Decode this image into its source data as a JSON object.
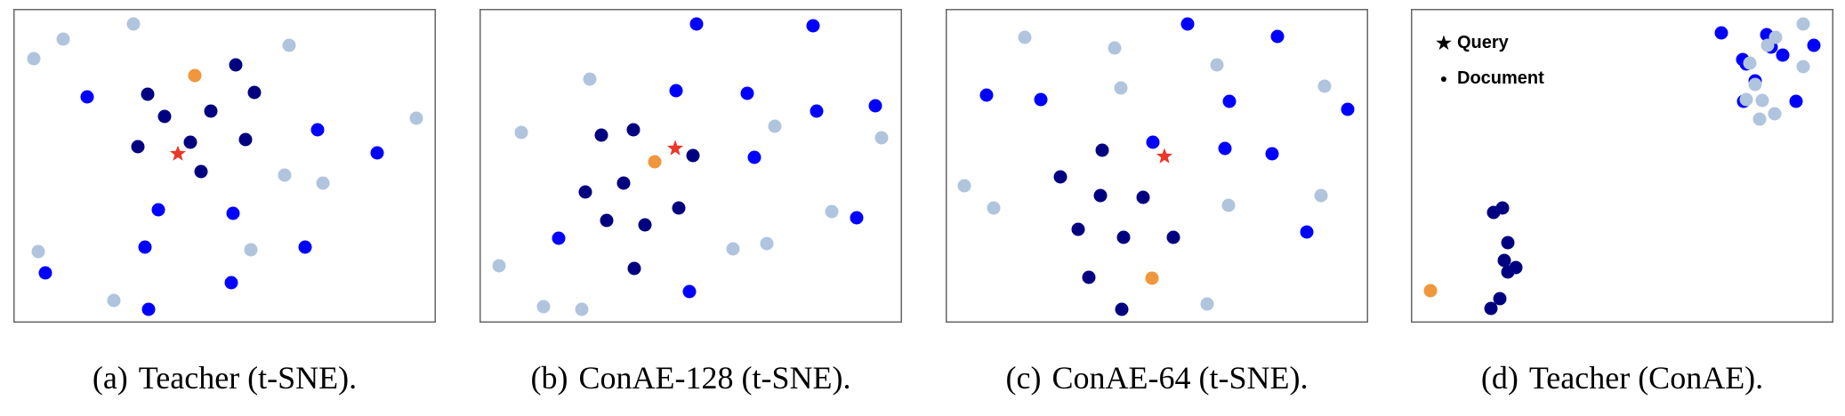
{
  "figure": {
    "colors": {
      "relevant_navy": "#000080",
      "blue": "#0000FF",
      "light": "#B0C4DE",
      "orange": "#F0963C",
      "query_star": "#E8382A",
      "frame": "#666666"
    },
    "legend": {
      "query_symbol": "★",
      "query_label": "Query",
      "document_symbol": "●",
      "document_label": "Document"
    }
  },
  "captions": [
    {
      "tag": "(a)",
      "text": "Teacher (t-SNE)."
    },
    {
      "tag": "(b)",
      "text": "ConAE-128 (t-SNE)."
    },
    {
      "tag": "(c)",
      "text": "ConAE-64 (t-SNE)."
    },
    {
      "tag": "(d)",
      "text": "Teacher (ConAE)."
    }
  ],
  "chart_data": [
    {
      "type": "scatter",
      "title": "(a) Teacher (t-SNE).",
      "xlabel": "",
      "ylabel": "",
      "grid": false,
      "axes_ticks": false,
      "coordinate_note": "pixel coords within 475x353 frame, origin top-left",
      "query": [
        185,
        163
      ],
      "series": [
        {
          "name": "navy",
          "color": "#000080",
          "points": [
            [
              250,
              63
            ],
            [
              151,
              96
            ],
            [
              271,
              94
            ],
            [
              170,
              121
            ],
            [
              222,
              115
            ],
            [
              140,
              155
            ],
            [
              199,
              150
            ],
            [
              261,
              147
            ],
            [
              211,
              183
            ]
          ]
        },
        {
          "name": "blue",
          "color": "#0000FF",
          "points": [
            [
              83,
              99
            ],
            [
              342,
              136
            ],
            [
              409,
              162
            ],
            [
              163,
              226
            ],
            [
              247,
              230
            ],
            [
              148,
              268
            ],
            [
              328,
              268
            ],
            [
              36,
              297
            ],
            [
              245,
              308
            ],
            [
              152,
              338
            ]
          ]
        },
        {
          "name": "light",
          "color": "#B0C4DE",
          "points": [
            [
              135,
              17
            ],
            [
              56,
              34
            ],
            [
              23,
              56
            ],
            [
              310,
              41
            ],
            [
              453,
              123
            ],
            [
              305,
              187
            ],
            [
              348,
              196
            ],
            [
              28,
              273
            ],
            [
              267,
              271
            ],
            [
              113,
              328
            ]
          ]
        },
        {
          "name": "orange",
          "color": "#F0963C",
          "points": [
            [
              204,
              75
            ]
          ]
        }
      ]
    },
    {
      "type": "scatter",
      "title": "(b) ConAE-128 (t-SNE).",
      "xlabel": "",
      "ylabel": "",
      "grid": false,
      "axes_ticks": false,
      "query": [
        220,
        157
      ],
      "series": [
        {
          "name": "navy",
          "color": "#000080",
          "points": [
            [
              137,
              142
            ],
            [
              173,
              136
            ],
            [
              240,
              165
            ],
            [
              162,
              196
            ],
            [
              119,
              206
            ],
            [
              224,
              224
            ],
            [
              143,
              238
            ],
            [
              186,
              243
            ],
            [
              174,
              292
            ]
          ]
        },
        {
          "name": "blue",
          "color": "#0000FF",
          "points": [
            [
              244,
              17
            ],
            [
              375,
              19
            ],
            [
              221,
              92
            ],
            [
              301,
              95
            ],
            [
              379,
              115
            ],
            [
              445,
              109
            ],
            [
              309,
              167
            ],
            [
              424,
              235
            ],
            [
              89,
              258
            ],
            [
              236,
              318
            ]
          ]
        },
        {
          "name": "light",
          "color": "#B0C4DE",
          "points": [
            [
              124,
              79
            ],
            [
              47,
              139
            ],
            [
              332,
              132
            ],
            [
              452,
              145
            ],
            [
              396,
              228
            ],
            [
              323,
              264
            ],
            [
              285,
              270
            ],
            [
              22,
              289
            ],
            [
              72,
              335
            ],
            [
              115,
              338
            ]
          ]
        },
        {
          "name": "orange",
          "color": "#F0963C",
          "points": [
            [
              197,
              172
            ]
          ]
        }
      ]
    },
    {
      "type": "scatter",
      "title": "(c) ConAE-64 (t-SNE).",
      "xlabel": "",
      "ylabel": "",
      "grid": false,
      "axes_ticks": false,
      "query": [
        246,
        166
      ],
      "series": [
        {
          "name": "navy",
          "color": "#000080",
          "points": [
            [
              176,
              159
            ],
            [
              129,
              189
            ],
            [
              174,
              210
            ],
            [
              222,
              212
            ],
            [
              149,
              248
            ],
            [
              200,
              257
            ],
            [
              256,
              257
            ],
            [
              161,
              302
            ],
            [
              198,
              338
            ]
          ]
        },
        {
          "name": "blue",
          "color": "#0000FF",
          "points": [
            [
              272,
              17
            ],
            [
              373,
              31
            ],
            [
              46,
              97
            ],
            [
              107,
              102
            ],
            [
              319,
              104
            ],
            [
              452,
              113
            ],
            [
              233,
              150
            ],
            [
              314,
              157
            ],
            [
              367,
              163
            ],
            [
              406,
              251
            ]
          ]
        },
        {
          "name": "light",
          "color": "#B0C4DE",
          "points": [
            [
              89,
              32
            ],
            [
              190,
              44
            ],
            [
              305,
              63
            ],
            [
              197,
              89
            ],
            [
              426,
              87
            ],
            [
              21,
              199
            ],
            [
              54,
              224
            ],
            [
              318,
              221
            ],
            [
              422,
              210
            ],
            [
              294,
              332
            ]
          ]
        },
        {
          "name": "orange",
          "color": "#F0963C",
          "points": [
            [
              232,
              303
            ]
          ]
        }
      ]
    },
    {
      "type": "scatter",
      "title": "(d) Teacher (ConAE).",
      "xlabel": "",
      "ylabel": "",
      "grid": false,
      "axes_ticks": false,
      "legend": {
        "position": "upper left",
        "entries": [
          "★ Query",
          "● Document"
        ]
      },
      "query": null,
      "series": [
        {
          "name": "navy",
          "color": "#000080",
          "points": [
            [
              93,
              229
            ],
            [
              103,
              224
            ],
            [
              109,
              263
            ],
            [
              105,
              283
            ],
            [
              118,
              291
            ],
            [
              109,
              296
            ],
            [
              100,
              326
            ],
            [
              90,
              337
            ]
          ]
        },
        {
          "name": "blue",
          "color": "#0000FF",
          "points": [
            [
              349,
              27
            ],
            [
              400,
              29
            ],
            [
              405,
              43
            ],
            [
              418,
              52
            ],
            [
              453,
              41
            ],
            [
              373,
              57
            ],
            [
              377,
              62
            ],
            [
              387,
              81
            ],
            [
              374,
              104
            ],
            [
              433,
              104
            ]
          ]
        },
        {
          "name": "light",
          "color": "#B0C4DE",
          "points": [
            [
              441,
              17
            ],
            [
              410,
              32
            ],
            [
              401,
              41
            ],
            [
              381,
              61
            ],
            [
              441,
              65
            ],
            [
              387,
              85
            ],
            [
              377,
              102
            ],
            [
              395,
              103
            ],
            [
              409,
              118
            ],
            [
              392,
              124
            ]
          ]
        },
        {
          "name": "orange",
          "color": "#F0963C",
          "points": [
            [
              22,
              317
            ]
          ]
        }
      ]
    }
  ]
}
